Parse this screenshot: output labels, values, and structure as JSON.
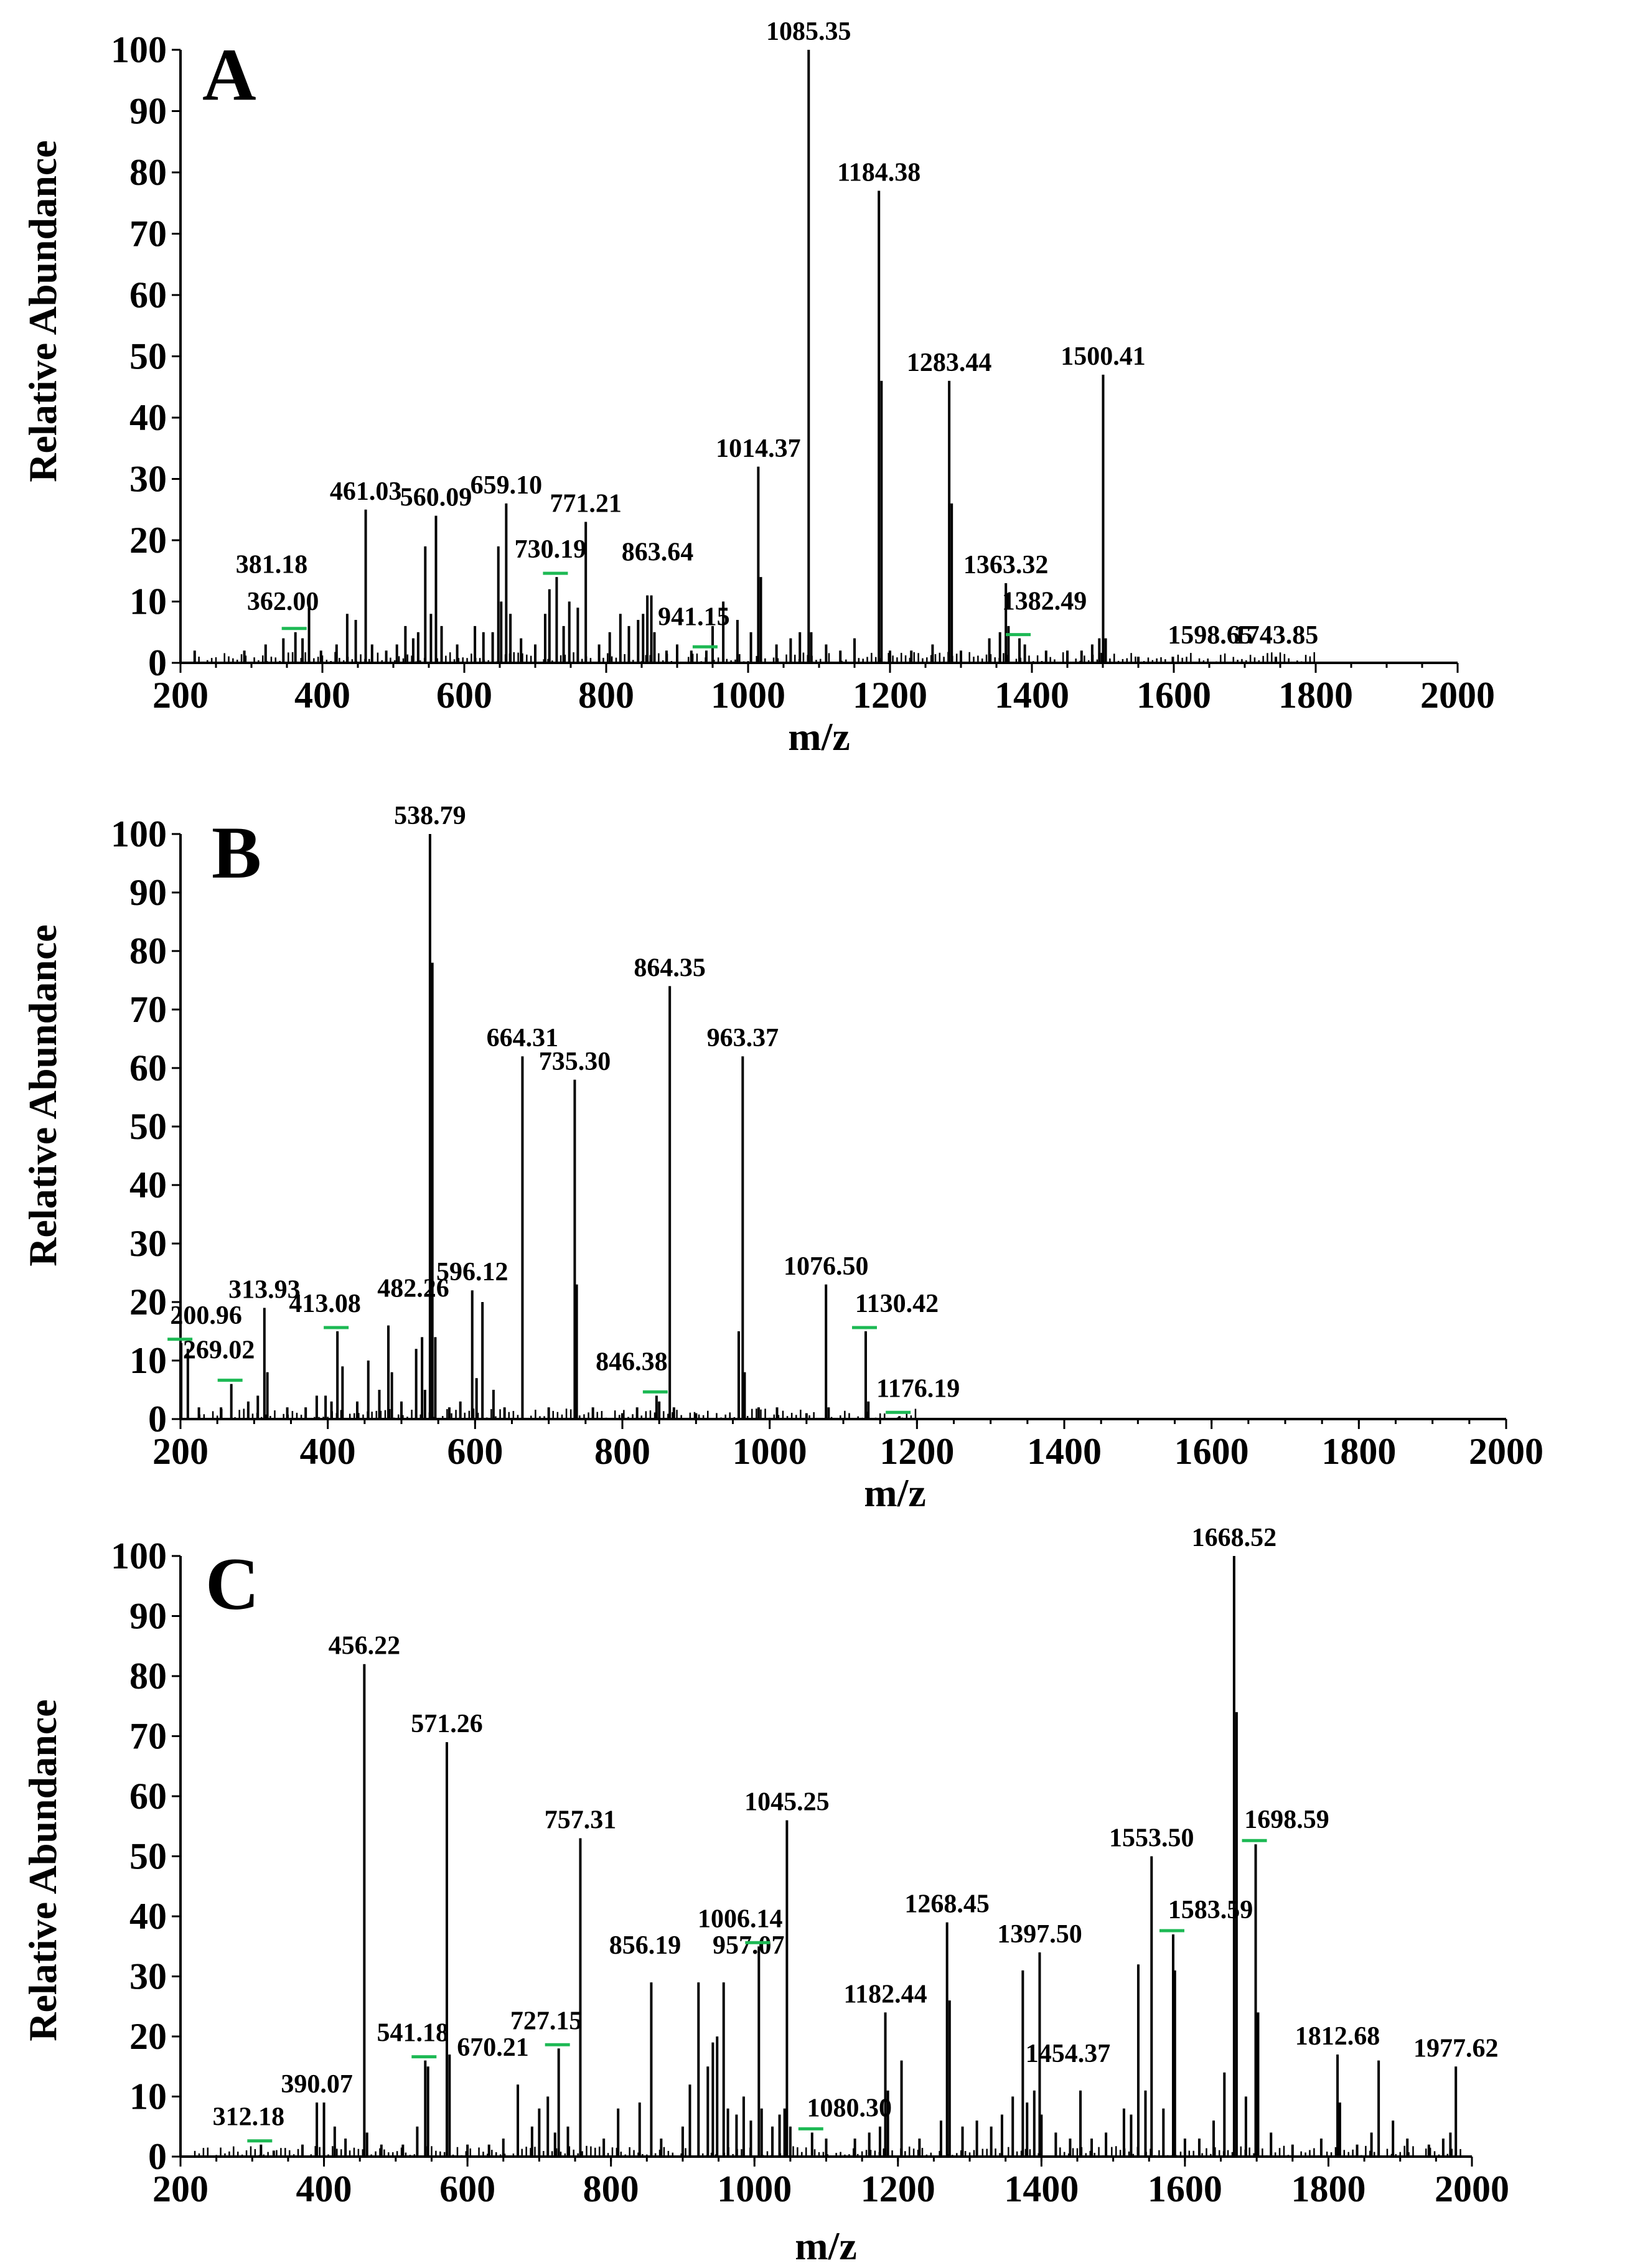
{
  "chart_data": [
    {
      "type": "bar",
      "panel_label": "A",
      "xlabel": "m/z",
      "ylabel": "Relative Abundance",
      "xlim": [
        200,
        2000
      ],
      "ylim": [
        0,
        100
      ],
      "xticks": [
        200,
        400,
        600,
        800,
        1000,
        1200,
        1400,
        1600,
        1800,
        2000
      ],
      "yticks": [
        0,
        10,
        20,
        30,
        40,
        50,
        60,
        70,
        80,
        90,
        100
      ],
      "peaks": [
        {
          "mz": 362.0,
          "abundance": 5,
          "label": "362.00",
          "marker": true
        },
        {
          "mz": 381.18,
          "abundance": 9,
          "label": "381.18"
        },
        {
          "mz": 461.03,
          "abundance": 25,
          "label": "461.03"
        },
        {
          "mz": 560.09,
          "abundance": 24,
          "label": "560.09"
        },
        {
          "mz": 659.1,
          "abundance": 26,
          "label": "659.10"
        },
        {
          "mz": 730.19,
          "abundance": 14,
          "label": "730.19",
          "marker": true
        },
        {
          "mz": 771.21,
          "abundance": 23,
          "label": "771.21"
        },
        {
          "mz": 863.64,
          "abundance": 11,
          "label": "863.64"
        },
        {
          "mz": 941.15,
          "abundance": 2,
          "label": "941.15",
          "marker": true
        },
        {
          "mz": 1014.37,
          "abundance": 32,
          "label": "1014.37"
        },
        {
          "mz": 1085.35,
          "abundance": 100,
          "label": "1085.35"
        },
        {
          "mz": 1184.38,
          "abundance": 77,
          "label": "1184.38"
        },
        {
          "mz": 1283.44,
          "abundance": 46,
          "label": "1283.44"
        },
        {
          "mz": 1363.32,
          "abundance": 13,
          "label": "1363.32"
        },
        {
          "mz": 1382.49,
          "abundance": 4,
          "label": "1382.49",
          "marker": true
        },
        {
          "mz": 1500.41,
          "abundance": 47,
          "label": "1500.41"
        },
        {
          "mz": 1598.65,
          "abundance": 1,
          "label": "1598.65"
        },
        {
          "mz": 1743.85,
          "abundance": 1,
          "label": "1743.85"
        }
      ],
      "minor_peaks": [
        [
          220,
          2
        ],
        [
          290,
          2
        ],
        [
          320,
          3
        ],
        [
          345,
          4
        ],
        [
          372,
          4
        ],
        [
          398,
          2
        ],
        [
          420,
          3
        ],
        [
          435,
          8
        ],
        [
          447,
          7
        ],
        [
          470,
          3
        ],
        [
          490,
          2
        ],
        [
          505,
          3
        ],
        [
          517,
          6
        ],
        [
          528,
          4
        ],
        [
          535,
          5
        ],
        [
          545,
          19
        ],
        [
          553,
          8
        ],
        [
          568,
          6
        ],
        [
          590,
          3
        ],
        [
          615,
          6
        ],
        [
          627,
          5
        ],
        [
          640,
          5
        ],
        [
          648,
          19
        ],
        [
          652,
          10
        ],
        [
          665,
          8
        ],
        [
          680,
          4
        ],
        [
          700,
          3
        ],
        [
          714,
          8
        ],
        [
          720,
          12
        ],
        [
          740,
          6
        ],
        [
          748,
          10
        ],
        [
          760,
          9
        ],
        [
          790,
          3
        ],
        [
          805,
          5
        ],
        [
          820,
          8
        ],
        [
          832,
          6
        ],
        [
          845,
          7
        ],
        [
          852,
          8
        ],
        [
          858,
          11
        ],
        [
          868,
          5
        ],
        [
          885,
          2
        ],
        [
          900,
          3
        ],
        [
          920,
          2
        ],
        [
          950,
          6
        ],
        [
          965,
          10
        ],
        [
          985,
          7
        ],
        [
          1004,
          5
        ],
        [
          1018,
          14
        ],
        [
          1040,
          3
        ],
        [
          1060,
          4
        ],
        [
          1073,
          5
        ],
        [
          1089,
          5
        ],
        [
          1110,
          3
        ],
        [
          1130,
          2
        ],
        [
          1150,
          4
        ],
        [
          1188,
          46
        ],
        [
          1200,
          2
        ],
        [
          1230,
          2
        ],
        [
          1260,
          3
        ],
        [
          1287,
          26
        ],
        [
          1300,
          2
        ],
        [
          1340,
          4
        ],
        [
          1355,
          5
        ],
        [
          1367,
          6
        ],
        [
          1390,
          3
        ],
        [
          1420,
          2
        ],
        [
          1450,
          2
        ],
        [
          1470,
          2
        ],
        [
          1485,
          3
        ],
        [
          1495,
          4
        ],
        [
          1504,
          4
        ],
        [
          1550,
          1
        ]
      ]
    },
    {
      "type": "bar",
      "panel_label": "B",
      "xlabel": "m/z",
      "ylabel": "Relative Abundance",
      "xlim": [
        200,
        2000
      ],
      "ylim": [
        0,
        100
      ],
      "xticks": [
        200,
        400,
        600,
        800,
        1000,
        1200,
        1400,
        1600,
        1800,
        2000
      ],
      "yticks": [
        0,
        10,
        20,
        30,
        40,
        50,
        60,
        70,
        80,
        90,
        100
      ],
      "peaks": [
        {
          "mz": 200.96,
          "abundance": 13,
          "label": "200.96",
          "marker": true
        },
        {
          "mz": 269.02,
          "abundance": 6,
          "label": "269.02",
          "marker": true
        },
        {
          "mz": 313.93,
          "abundance": 19,
          "label": "313.93"
        },
        {
          "mz": 413.08,
          "abundance": 15,
          "label": "413.08",
          "marker": true
        },
        {
          "mz": 482.26,
          "abundance": 16,
          "label": "482.26"
        },
        {
          "mz": 538.79,
          "abundance": 100,
          "label": "538.79"
        },
        {
          "mz": 596.12,
          "abundance": 22,
          "label": "596.12"
        },
        {
          "mz": 664.31,
          "abundance": 62,
          "label": "664.31"
        },
        {
          "mz": 735.3,
          "abundance": 58,
          "label": "735.30"
        },
        {
          "mz": 846.38,
          "abundance": 4,
          "label": "846.38",
          "marker": true
        },
        {
          "mz": 864.35,
          "abundance": 74,
          "label": "864.35"
        },
        {
          "mz": 963.37,
          "abundance": 62,
          "label": "963.37"
        },
        {
          "mz": 1076.5,
          "abundance": 23,
          "label": "1076.50"
        },
        {
          "mz": 1130.42,
          "abundance": 15,
          "label": "1130.42",
          "marker": true
        },
        {
          "mz": 1176.19,
          "abundance": 0.5,
          "label": "1176.19",
          "marker": true
        }
      ],
      "minor_peaks": [
        [
          210,
          12
        ],
        [
          225,
          2
        ],
        [
          255,
          2
        ],
        [
          292,
          3
        ],
        [
          305,
          4
        ],
        [
          318,
          8
        ],
        [
          345,
          2
        ],
        [
          370,
          2
        ],
        [
          385,
          4
        ],
        [
          397,
          4
        ],
        [
          405,
          3
        ],
        [
          420,
          9
        ],
        [
          440,
          3
        ],
        [
          455,
          10
        ],
        [
          470,
          5
        ],
        [
          487,
          8
        ],
        [
          500,
          3
        ],
        [
          520,
          12
        ],
        [
          528,
          14
        ],
        [
          532,
          5
        ],
        [
          542,
          78
        ],
        [
          546,
          14
        ],
        [
          565,
          2
        ],
        [
          580,
          3
        ],
        [
          602,
          7
        ],
        [
          610,
          20
        ],
        [
          625,
          5
        ],
        [
          640,
          2
        ],
        [
          700,
          2
        ],
        [
          738,
          23
        ],
        [
          760,
          2
        ],
        [
          800,
          1
        ],
        [
          820,
          2
        ],
        [
          850,
          3
        ],
        [
          870,
          2
        ],
        [
          900,
          1
        ],
        [
          958,
          15
        ],
        [
          966,
          8
        ],
        [
          985,
          2
        ],
        [
          1010,
          2
        ],
        [
          1050,
          1
        ],
        [
          1080,
          2
        ],
        [
          1134,
          3
        ]
      ]
    },
    {
      "type": "bar",
      "panel_label": "C",
      "xlabel": "m/z",
      "ylabel": "Relative Abundance",
      "xlim": [
        200,
        2000
      ],
      "ylim": [
        0,
        100
      ],
      "xticks": [
        200,
        400,
        600,
        800,
        1000,
        1200,
        1400,
        1600,
        1800,
        2000
      ],
      "yticks": [
        0,
        10,
        20,
        30,
        40,
        50,
        60,
        70,
        80,
        90,
        100
      ],
      "peaks": [
        {
          "mz": 312.18,
          "abundance": 2,
          "label": "312.18",
          "marker": true
        },
        {
          "mz": 390.07,
          "abundance": 9,
          "label": "390.07"
        },
        {
          "mz": 456.22,
          "abundance": 82,
          "label": "456.22"
        },
        {
          "mz": 541.18,
          "abundance": 16,
          "label": "541.18",
          "marker": true
        },
        {
          "mz": 571.26,
          "abundance": 69,
          "label": "571.26"
        },
        {
          "mz": 670.21,
          "abundance": 12,
          "label": "670.21"
        },
        {
          "mz": 727.15,
          "abundance": 18,
          "label": "727.15",
          "marker": true
        },
        {
          "mz": 757.31,
          "abundance": 53,
          "label": "757.31"
        },
        {
          "mz": 856.19,
          "abundance": 29,
          "label": "856.19"
        },
        {
          "mz": 957.07,
          "abundance": 29,
          "label": "957.07"
        },
        {
          "mz": 1006.14,
          "abundance": 35,
          "label": "1006.14",
          "marker": true
        },
        {
          "mz": 1045.25,
          "abundance": 56,
          "label": "1045.25"
        },
        {
          "mz": 1080.3,
          "abundance": 4,
          "label": "1080.30",
          "marker": true
        },
        {
          "mz": 1182.44,
          "abundance": 24,
          "label": "1182.44"
        },
        {
          "mz": 1268.45,
          "abundance": 39,
          "label": "1268.45"
        },
        {
          "mz": 1397.5,
          "abundance": 34,
          "label": "1397.50"
        },
        {
          "mz": 1454.37,
          "abundance": 11,
          "label": "1454.37"
        },
        {
          "mz": 1553.5,
          "abundance": 50,
          "label": "1553.50"
        },
        {
          "mz": 1583.59,
          "abundance": 37,
          "label": "1583.59",
          "marker": true
        },
        {
          "mz": 1668.52,
          "abundance": 100,
          "label": "1668.52"
        },
        {
          "mz": 1698.59,
          "abundance": 52,
          "label": "1698.59",
          "marker": true
        },
        {
          "mz": 1812.68,
          "abundance": 17,
          "label": "1812.68"
        },
        {
          "mz": 1977.62,
          "abundance": 15,
          "label": "1977.62"
        }
      ],
      "minor_peaks": [
        [
          330,
          1
        ],
        [
          370,
          2
        ],
        [
          400,
          9
        ],
        [
          415,
          5
        ],
        [
          430,
          3
        ],
        [
          460,
          4
        ],
        [
          480,
          2
        ],
        [
          510,
          2
        ],
        [
          530,
          5
        ],
        [
          545,
          15
        ],
        [
          575,
          17
        ],
        [
          600,
          2
        ],
        [
          630,
          2
        ],
        [
          650,
          3
        ],
        [
          690,
          5
        ],
        [
          700,
          8
        ],
        [
          712,
          10
        ],
        [
          722,
          4
        ],
        [
          740,
          5
        ],
        [
          790,
          3
        ],
        [
          810,
          8
        ],
        [
          840,
          9
        ],
        [
          870,
          3
        ],
        [
          900,
          5
        ],
        [
          910,
          12
        ],
        [
          922,
          29
        ],
        [
          935,
          15
        ],
        [
          942,
          19
        ],
        [
          948,
          20
        ],
        [
          963,
          8
        ],
        [
          975,
          7
        ],
        [
          985,
          10
        ],
        [
          995,
          6
        ],
        [
          1010,
          8
        ],
        [
          1025,
          5
        ],
        [
          1035,
          7
        ],
        [
          1042,
          8
        ],
        [
          1050,
          5
        ],
        [
          1100,
          3
        ],
        [
          1140,
          3
        ],
        [
          1160,
          4
        ],
        [
          1175,
          5
        ],
        [
          1186,
          11
        ],
        [
          1205,
          16
        ],
        [
          1230,
          3
        ],
        [
          1260,
          6
        ],
        [
          1272,
          26
        ],
        [
          1290,
          5
        ],
        [
          1310,
          6
        ],
        [
          1330,
          5
        ],
        [
          1345,
          7
        ],
        [
          1360,
          10
        ],
        [
          1374,
          31
        ],
        [
          1380,
          9
        ],
        [
          1390,
          11
        ],
        [
          1400,
          7
        ],
        [
          1420,
          4
        ],
        [
          1440,
          3
        ],
        [
          1470,
          3
        ],
        [
          1490,
          4
        ],
        [
          1515,
          8
        ],
        [
          1525,
          7
        ],
        [
          1535,
          32
        ],
        [
          1545,
          11
        ],
        [
          1570,
          8
        ],
        [
          1586,
          31
        ],
        [
          1600,
          3
        ],
        [
          1620,
          3
        ],
        [
          1640,
          6
        ],
        [
          1655,
          14
        ],
        [
          1672,
          74
        ],
        [
          1685,
          10
        ],
        [
          1702,
          24
        ],
        [
          1720,
          4
        ],
        [
          1750,
          2
        ],
        [
          1790,
          3
        ],
        [
          1816,
          9
        ],
        [
          1840,
          2
        ],
        [
          1860,
          4
        ],
        [
          1870,
          16
        ],
        [
          1890,
          6
        ],
        [
          1910,
          3
        ],
        [
          1940,
          2
        ],
        [
          1960,
          3
        ],
        [
          1970,
          4
        ]
      ]
    }
  ]
}
